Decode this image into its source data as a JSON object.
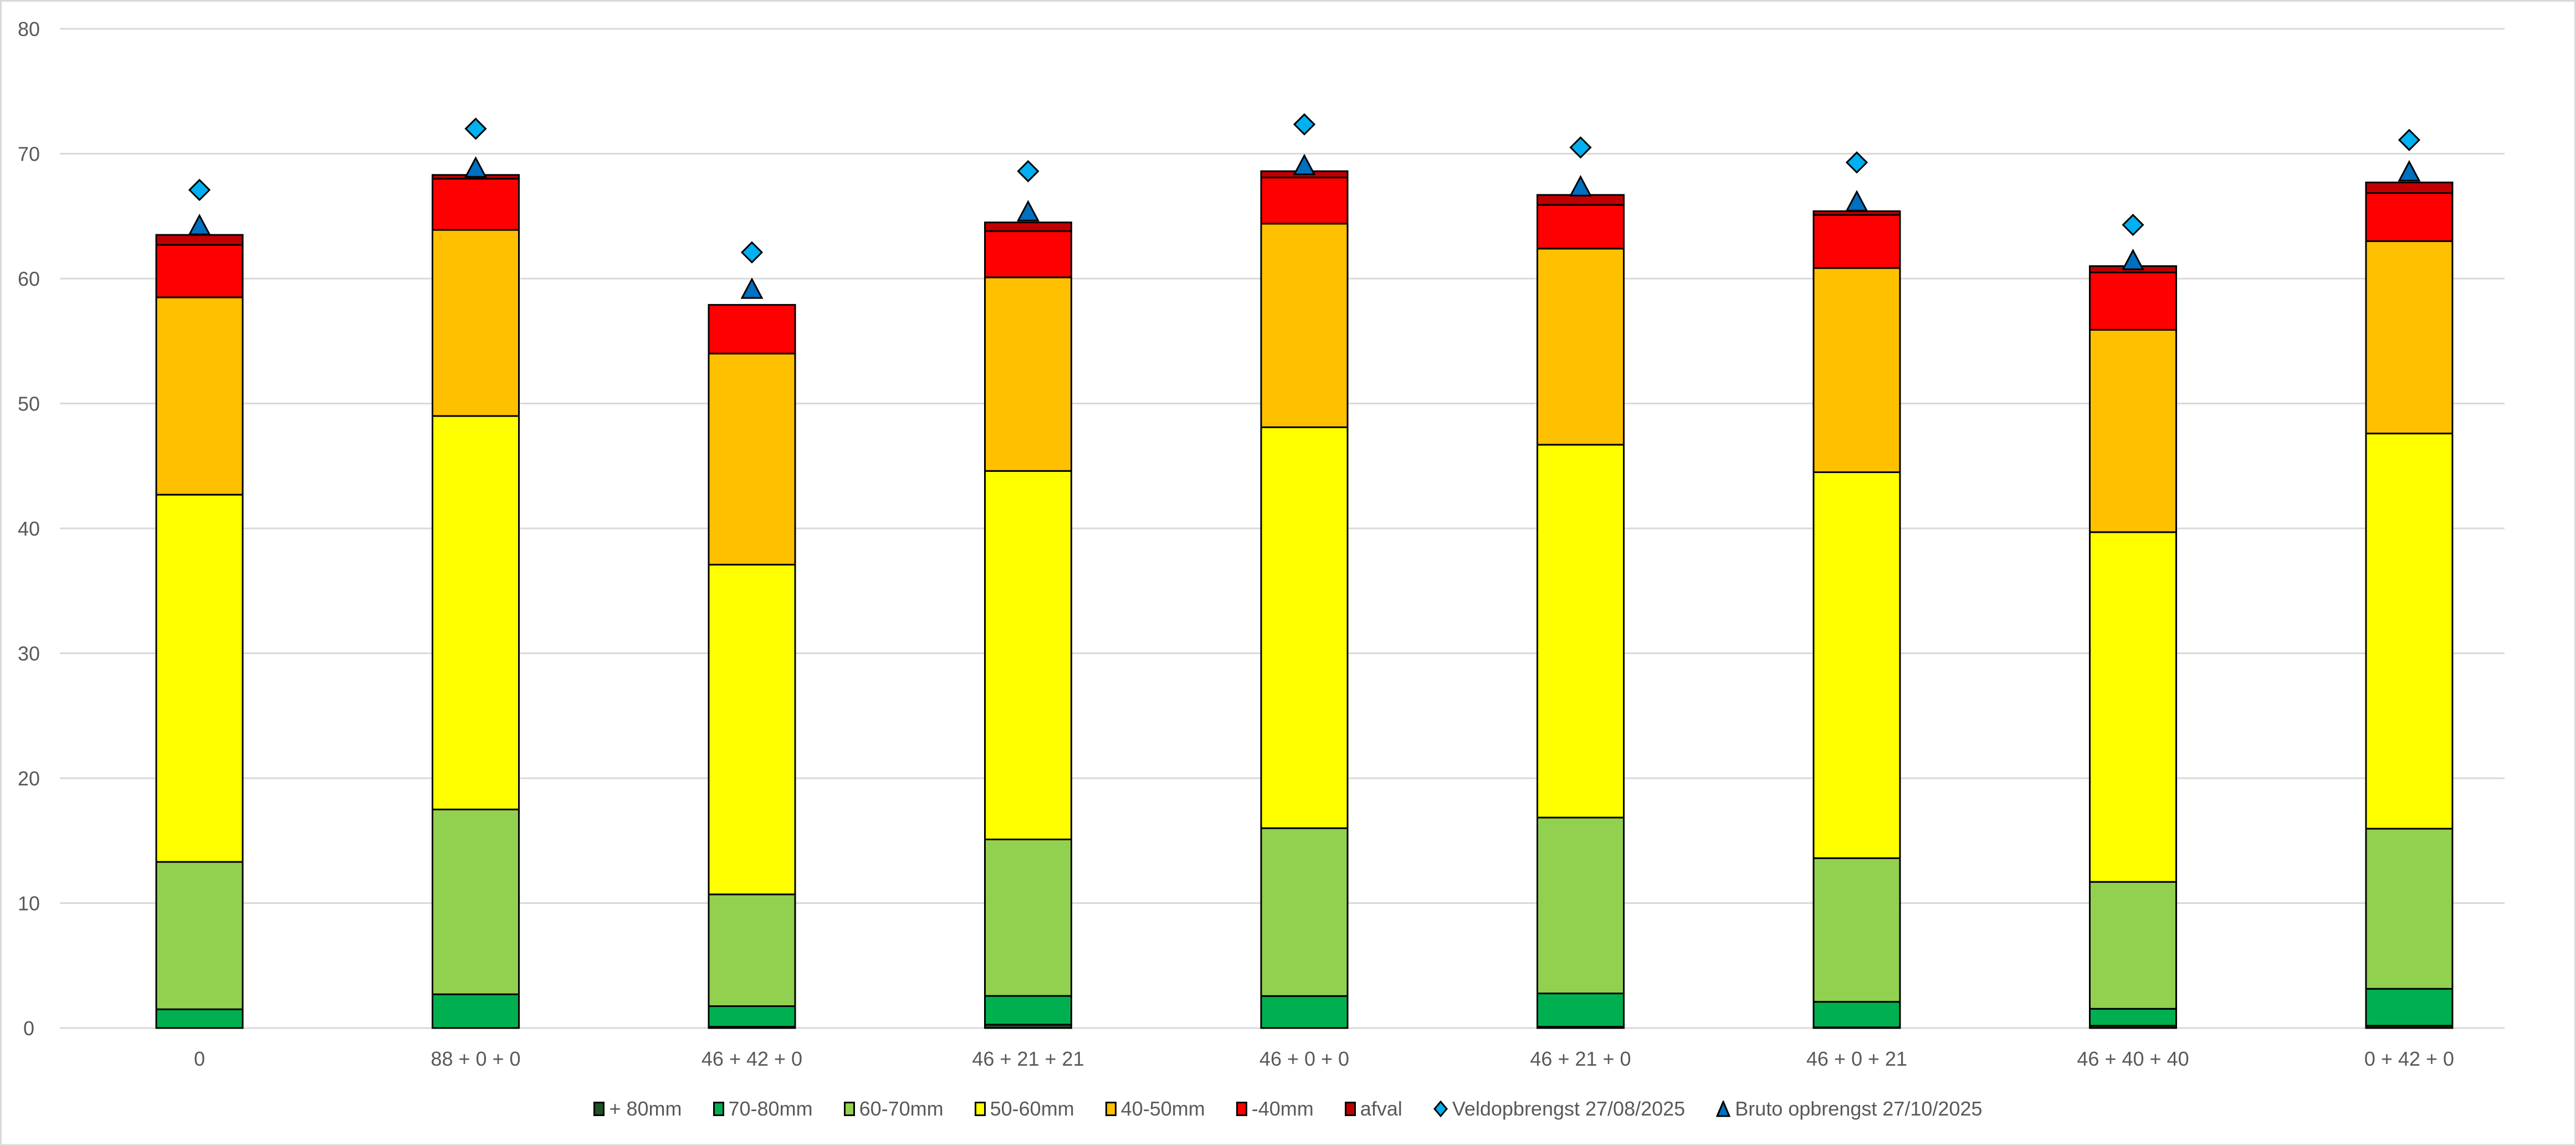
{
  "chart_data": {
    "type": "bar",
    "stacked": true,
    "title": "",
    "xlabel": "",
    "ylabel": "",
    "ylim": [
      0,
      80
    ],
    "yticks": [
      0,
      10,
      20,
      30,
      40,
      50,
      60,
      70,
      80
    ],
    "grid": true,
    "legend_position": "bottom",
    "categories": [
      "0",
      "88 + 0 + 0",
      "46 + 42 + 0",
      "46 + 21 + 21",
      "46 + 0 + 0",
      "46 + 21 + 0",
      "46 + 0 + 21",
      "46 + 40 + 40",
      "0 + 42 + 0"
    ],
    "series": [
      {
        "name": "+ 80mm",
        "kind": "bar",
        "color": "#1e5225",
        "values": [
          0,
          0,
          0.1,
          0.27,
          0,
          0.1,
          0.05,
          0.18,
          0.18
        ]
      },
      {
        "name": "70-80mm",
        "kind": "bar",
        "color": "#00b050",
        "values": [
          1.5,
          2.7,
          1.65,
          2.3,
          2.56,
          2.67,
          2.05,
          1.36,
          2.96
        ]
      },
      {
        "name": "60-70mm",
        "kind": "bar",
        "color": "#92d050",
        "values": [
          11.8,
          14.8,
          8.95,
          12.53,
          13.44,
          14.08,
          11.5,
          10.16,
          12.82
        ]
      },
      {
        "name": "50-60mm",
        "kind": "bar",
        "color": "#ffff00",
        "values": [
          29.4,
          31.5,
          26.4,
          29.5,
          32.1,
          29.85,
          30.9,
          28.0,
          31.64
        ]
      },
      {
        "name": "40-50mm",
        "kind": "bar",
        "color": "#ffc000",
        "values": [
          15.8,
          14.9,
          16.9,
          15.5,
          16.3,
          15.7,
          16.35,
          16.2,
          15.4
        ]
      },
      {
        "name": "-40mm",
        "kind": "bar",
        "color": "#ff0000",
        "values": [
          4.2,
          4.1,
          3.9,
          3.7,
          3.7,
          3.5,
          4.25,
          4.6,
          3.85
        ]
      },
      {
        "name": "afval",
        "kind": "bar",
        "color": "#c00000",
        "values": [
          0.8,
          0.3,
          0,
          0.7,
          0.5,
          0.8,
          0.3,
          0.5,
          0.85
        ]
      },
      {
        "name": "Veldopbrengst 27/08/2025",
        "kind": "marker",
        "marker": "diamond",
        "color": "#00b0f0",
        "values": [
          67.1,
          72.0,
          62.1,
          68.6,
          72.35,
          70.5,
          69.3,
          64.3,
          71.1
        ]
      },
      {
        "name": "Bruto opbrengst 27/10/2025",
        "kind": "marker",
        "marker": "triangle",
        "color": "#0070c0",
        "values": [
          64.3,
          68.9,
          59.2,
          65.4,
          69.1,
          67.4,
          66.2,
          61.5,
          68.6
        ]
      }
    ]
  }
}
